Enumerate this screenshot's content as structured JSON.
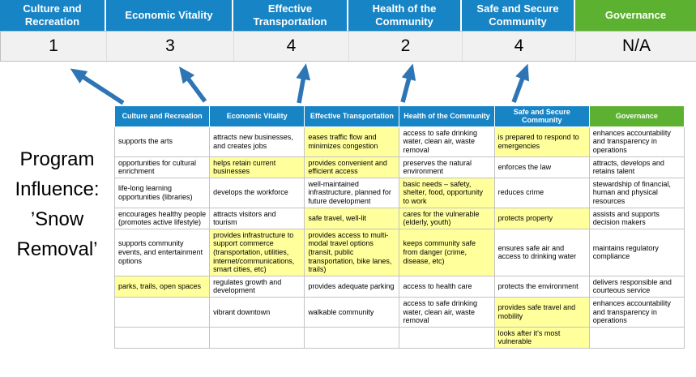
{
  "title": {
    "lines": [
      "Program",
      "Influence:",
      "’Snow",
      "Removal’"
    ]
  },
  "colors": {
    "blue": "#1784c5",
    "green": "#5cb130",
    "highlight": "#ffff9c",
    "arrow": "#2e75b6"
  },
  "scoreboard": {
    "columns": [
      {
        "label": "Culture and Recreation",
        "score": "1",
        "type": "blue"
      },
      {
        "label": "Economic Vitality",
        "score": "3",
        "type": "blue"
      },
      {
        "label": "Effective Transportation",
        "score": "4",
        "type": "blue"
      },
      {
        "label": "Health of the Community",
        "score": "2",
        "type": "blue"
      },
      {
        "label": "Safe and Secure Community",
        "score": "4",
        "type": "blue"
      },
      {
        "label": "Governance",
        "score": "N/A",
        "type": "green"
      }
    ]
  },
  "matrix": {
    "headers": [
      {
        "label": "Culture and Recreation",
        "type": "blue"
      },
      {
        "label": "Economic Vitality",
        "type": "blue"
      },
      {
        "label": "Effective Transportation",
        "type": "blue"
      },
      {
        "label": "Health of the Community",
        "type": "blue"
      },
      {
        "label": "Safe and Secure Community",
        "type": "blue"
      },
      {
        "label": "Governance",
        "type": "green"
      }
    ],
    "rows": [
      [
        {
          "text": "supports the arts",
          "highlight": false
        },
        {
          "text": "attracts new businesses, and creates jobs",
          "highlight": false
        },
        {
          "text": "eases traffic flow and minimizes congestion",
          "highlight": true
        },
        {
          "text": "access to safe drinking water, clean air, waste removal",
          "highlight": false
        },
        {
          "text": "is prepared to respond to emergencies",
          "highlight": true
        },
        {
          "text": "enhances accountability and transparency in operations",
          "highlight": false
        }
      ],
      [
        {
          "text": "opportunities for cultural enrichment",
          "highlight": false
        },
        {
          "text": "helps retain current businesses",
          "highlight": true
        },
        {
          "text": "provides convenient and efficient access",
          "highlight": true
        },
        {
          "text": "preserves the natural environment",
          "highlight": false
        },
        {
          "text": "enforces the law",
          "highlight": false
        },
        {
          "text": "attracts, develops and retains talent",
          "highlight": false
        }
      ],
      [
        {
          "text": "life-long learning opportunities (libraries)",
          "highlight": false
        },
        {
          "text": "develops the workforce",
          "highlight": false
        },
        {
          "text": "well-maintained infrastructure, planned for future development",
          "highlight": false
        },
        {
          "text": "basic needs – safety, shelter, food, opportunity to work",
          "highlight": true
        },
        {
          "text": "reduces crime",
          "highlight": false
        },
        {
          "text": "stewardship of financial, human and physical resources",
          "highlight": false
        }
      ],
      [
        {
          "text": "encourages healthy people (promotes active lifestyle)",
          "highlight": false
        },
        {
          "text": "attracts visitors and tourism",
          "highlight": false
        },
        {
          "text": "safe travel, well-lit",
          "highlight": true
        },
        {
          "text": "cares for the vulnerable (elderly, youth)",
          "highlight": true
        },
        {
          "text": "protects property",
          "highlight": true
        },
        {
          "text": "assists and supports decision makers",
          "highlight": false
        }
      ],
      [
        {
          "text": "supports community events, and entertainment options",
          "highlight": false
        },
        {
          "text": "provides infrastructure to support commerce (transportation, utilities, internet/communications, smart cities, etc)",
          "highlight": true
        },
        {
          "text": "provides access to multi-modal travel options (transit, public transportation, bike lanes, trails)",
          "highlight": true
        },
        {
          "text": "keeps community safe from danger (crime, disease, etc)",
          "highlight": true
        },
        {
          "text": "ensures safe air and access to drinking water",
          "highlight": false
        },
        {
          "text": "maintains regulatory compliance",
          "highlight": false
        }
      ],
      [
        {
          "text": "parks, trails, open spaces",
          "highlight": true
        },
        {
          "text": "regulates growth and development",
          "highlight": false
        },
        {
          "text": "provides adequate parking",
          "highlight": false
        },
        {
          "text": "access to health care",
          "highlight": false
        },
        {
          "text": "protects the environment",
          "highlight": false
        },
        {
          "text": "delivers responsible and courteous service",
          "highlight": false
        }
      ],
      [
        {
          "text": "",
          "highlight": false
        },
        {
          "text": "vibrant downtown",
          "highlight": false
        },
        {
          "text": "walkable community",
          "highlight": false
        },
        {
          "text": "access to safe drinking water, clean air, waste removal",
          "highlight": false
        },
        {
          "text": "provides safe travel and mobility",
          "highlight": true
        },
        {
          "text": "enhances accountability and transparency in operations",
          "highlight": false
        }
      ],
      [
        {
          "text": "",
          "highlight": false
        },
        {
          "text": "",
          "highlight": false
        },
        {
          "text": "",
          "highlight": false
        },
        {
          "text": "",
          "highlight": false
        },
        {
          "text": "looks after it's most vulnerable",
          "highlight": true
        },
        {
          "text": "",
          "highlight": false
        }
      ]
    ]
  }
}
